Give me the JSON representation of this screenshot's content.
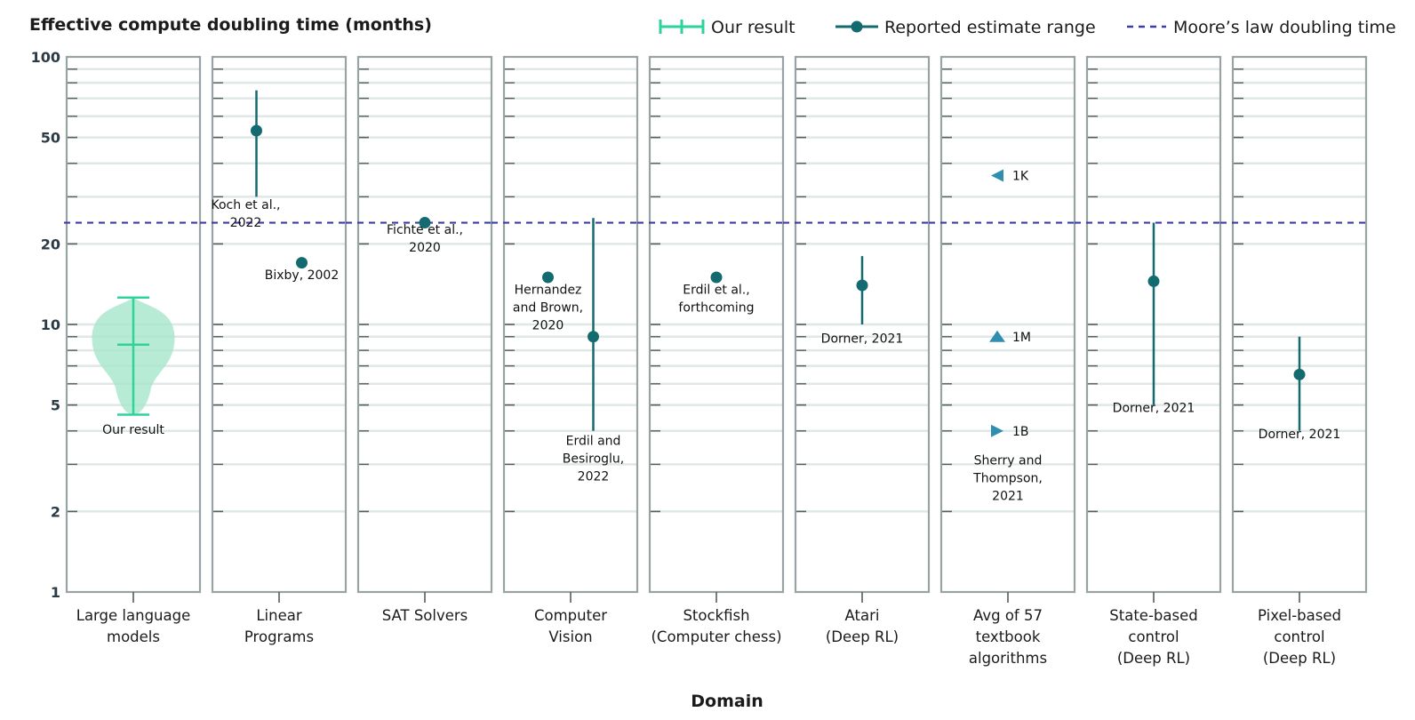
{
  "chart_data": {
    "type": "scatter",
    "title": "Effective compute doubling time (months)",
    "xlabel": "Domain",
    "ylabel": "",
    "yscale": "log",
    "ylim": [
      1,
      100
    ],
    "yticks": [
      {
        "value": 1,
        "label": "1"
      },
      {
        "value": 2,
        "label": "2"
      },
      {
        "value": 5,
        "label": "5"
      },
      {
        "value": 10,
        "label": "10"
      },
      {
        "value": 20,
        "label": "20"
      },
      {
        "value": 50,
        "label": "50"
      },
      {
        "value": 100,
        "label": "100"
      }
    ],
    "grid": true,
    "legend_position": "top-right",
    "legend": [
      {
        "key": "ours",
        "label": "Our result"
      },
      {
        "key": "reported",
        "label": "Reported estimate range"
      },
      {
        "key": "moore",
        "label": "Moore’s law doubling time"
      }
    ],
    "colors": {
      "ours": "#2ed39a",
      "ours_fill": "#a6e6cc",
      "reported": "#136b6f",
      "moore": "#3c3ca8",
      "triangle": "#2f8fb0",
      "frame": "#9aa3a3",
      "grid": "#dfe7e7"
    },
    "moore_line": 24,
    "panels": [
      {
        "category": [
          "Large language",
          "models"
        ],
        "violin": {
          "median": 8.4,
          "low": 4.6,
          "high": 12.6
        },
        "points": [],
        "labels": [
          {
            "text": [
              "Our result"
            ],
            "x": 0.5,
            "y": 3.9
          }
        ]
      },
      {
        "category": [
          "Linear",
          "Programs"
        ],
        "points": [
          {
            "x": 0.33,
            "y": 53,
            "low": 30,
            "high": 75
          },
          {
            "x": 0.67,
            "y": 17
          }
        ],
        "labels": [
          {
            "text": [
              "Koch et al.,",
              "2022"
            ],
            "x": 0.25,
            "y": 27
          },
          {
            "text": [
              "Bixby, 2002"
            ],
            "x": 0.67,
            "y": 14.8
          }
        ]
      },
      {
        "category": [
          "SAT Solvers"
        ],
        "points": [
          {
            "x": 0.5,
            "y": 24
          }
        ],
        "labels": [
          {
            "text": [
              "Fichte et al.,",
              "2020"
            ],
            "x": 0.5,
            "y": 21.8
          }
        ]
      },
      {
        "category": [
          "Computer",
          "Vision"
        ],
        "points": [
          {
            "x": 0.33,
            "y": 15
          },
          {
            "x": 0.67,
            "y": 9,
            "low": 4,
            "high": 25
          }
        ],
        "labels": [
          {
            "text": [
              "Hernandez",
              "and Brown,",
              "2020"
            ],
            "x": 0.33,
            "y": 13.0
          },
          {
            "text": [
              "Erdil and",
              "Besiroglu,",
              "2022"
            ],
            "x": 0.67,
            "y": 3.55
          }
        ]
      },
      {
        "category": [
          "Stockfish",
          "(Computer chess)"
        ],
        "points": [
          {
            "x": 0.5,
            "y": 15
          }
        ],
        "labels": [
          {
            "text": [
              "Erdil et al.,",
              "forthcoming"
            ],
            "x": 0.5,
            "y": 13.0
          }
        ]
      },
      {
        "category": [
          "Atari",
          "(Deep RL)"
        ],
        "points": [
          {
            "x": 0.5,
            "y": 14,
            "low": 10,
            "high": 18
          }
        ],
        "labels": [
          {
            "text": [
              "Dorner, 2021"
            ],
            "x": 0.5,
            "y": 8.55
          }
        ]
      },
      {
        "category": [
          "Avg of 57",
          "textbook",
          "algorithms"
        ],
        "points": [
          {
            "x": 0.42,
            "y": 36,
            "marker": "triangle-left",
            "label": "1K"
          },
          {
            "x": 0.42,
            "y": 9,
            "marker": "triangle-up",
            "label": "1M"
          },
          {
            "x": 0.42,
            "y": 4,
            "marker": "triangle-right",
            "label": "1B"
          }
        ],
        "labels": [
          {
            "text": [
              "Sherry and",
              "Thompson,",
              "2021"
            ],
            "x": 0.5,
            "y": 3.0
          }
        ]
      },
      {
        "category": [
          "State-based",
          "control",
          "(Deep RL)"
        ],
        "points": [
          {
            "x": 0.5,
            "y": 14.5,
            "low": 5,
            "high": 24
          }
        ],
        "labels": [
          {
            "text": [
              "Dorner, 2021"
            ],
            "x": 0.5,
            "y": 4.7
          }
        ]
      },
      {
        "category": [
          "Pixel-based",
          "control",
          "(Deep RL)"
        ],
        "points": [
          {
            "x": 0.5,
            "y": 6.5,
            "low": 4,
            "high": 9
          }
        ],
        "labels": [
          {
            "text": [
              "Dorner, 2021"
            ],
            "x": 0.5,
            "y": 3.75
          }
        ]
      }
    ]
  }
}
